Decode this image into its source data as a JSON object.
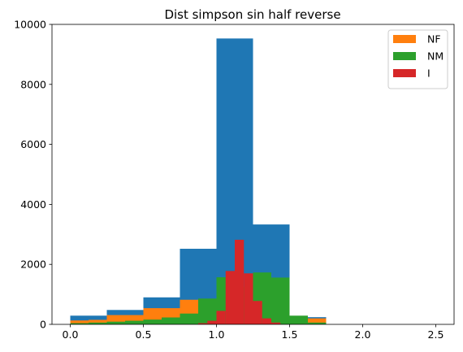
{
  "chart_data": {
    "type": "histogram",
    "title": "Dist simpson sin half reverse",
    "xlabel": "",
    "ylabel": "",
    "xlim": [
      -0.125,
      2.625
    ],
    "ylim": [
      0,
      10000
    ],
    "xticks": [
      0.0,
      0.5,
      1.0,
      1.5,
      2.0,
      2.5
    ],
    "xtick_labels": [
      "0.0",
      "0.5",
      "1.0",
      "1.5",
      "2.0",
      "2.5"
    ],
    "yticks": [
      0,
      2000,
      4000,
      6000,
      8000,
      10000
    ],
    "ytick_labels": [
      "0",
      "2000",
      "4000",
      "6000",
      "8000",
      "10000"
    ],
    "legend_position": "top-right",
    "series": [
      {
        "name": "",
        "color": "#1f77b4",
        "bins": [
          {
            "x0": 0.0,
            "x1": 0.25,
            "value": 290
          },
          {
            "x0": 0.25,
            "x1": 0.5,
            "value": 480
          },
          {
            "x0": 0.5,
            "x1": 0.75,
            "value": 900
          },
          {
            "x0": 0.75,
            "x1": 1.0,
            "value": 2520
          },
          {
            "x0": 1.0,
            "x1": 1.25,
            "value": 9530
          },
          {
            "x0": 1.25,
            "x1": 1.5,
            "value": 3330
          },
          {
            "x0": 1.5,
            "x1": 1.75,
            "value": 240
          }
        ]
      },
      {
        "name": "NF",
        "color": "#ff7f0e",
        "bins": [
          {
            "x0": 0.0,
            "x1": 0.125,
            "value": 130
          },
          {
            "x0": 0.125,
            "x1": 0.25,
            "value": 150
          },
          {
            "x0": 0.25,
            "x1": 0.5,
            "value": 310
          },
          {
            "x0": 0.5,
            "x1": 0.75,
            "value": 540
          },
          {
            "x0": 0.75,
            "x1": 1.0,
            "value": 820
          },
          {
            "x0": 1.0,
            "x1": 1.25,
            "value": 620
          },
          {
            "x0": 1.25,
            "x1": 1.375,
            "value": 640
          },
          {
            "x0": 1.375,
            "x1": 1.5,
            "value": 820
          },
          {
            "x0": 1.5,
            "x1": 1.75,
            "value": 200
          }
        ]
      },
      {
        "name": "NM",
        "color": "#2ca02c",
        "bins": [
          {
            "x0": 0.0,
            "x1": 0.125,
            "value": 40
          },
          {
            "x0": 0.125,
            "x1": 0.25,
            "value": 60
          },
          {
            "x0": 0.25,
            "x1": 0.375,
            "value": 90
          },
          {
            "x0": 0.375,
            "x1": 0.5,
            "value": 120
          },
          {
            "x0": 0.5,
            "x1": 0.625,
            "value": 160
          },
          {
            "x0": 0.625,
            "x1": 0.75,
            "value": 230
          },
          {
            "x0": 0.75,
            "x1": 0.875,
            "value": 360
          },
          {
            "x0": 0.875,
            "x1": 1.0,
            "value": 860
          },
          {
            "x0": 1.0,
            "x1": 1.125,
            "value": 1570
          },
          {
            "x0": 1.125,
            "x1": 1.25,
            "value": 1250
          },
          {
            "x0": 1.25,
            "x1": 1.375,
            "value": 1730
          },
          {
            "x0": 1.375,
            "x1": 1.5,
            "value": 1560
          },
          {
            "x0": 1.5,
            "x1": 1.625,
            "value": 290
          },
          {
            "x0": 1.625,
            "x1": 1.75,
            "value": 60
          }
        ]
      },
      {
        "name": "I",
        "color": "#d62728",
        "bins": [
          {
            "x0": 0.875,
            "x1": 0.9375,
            "value": 40
          },
          {
            "x0": 0.9375,
            "x1": 1.0,
            "value": 120
          },
          {
            "x0": 1.0,
            "x1": 1.0625,
            "value": 450
          },
          {
            "x0": 1.0625,
            "x1": 1.125,
            "value": 1780
          },
          {
            "x0": 1.125,
            "x1": 1.1875,
            "value": 2820
          },
          {
            "x0": 1.1875,
            "x1": 1.25,
            "value": 1700
          },
          {
            "x0": 1.25,
            "x1": 1.3125,
            "value": 780
          },
          {
            "x0": 1.3125,
            "x1": 1.375,
            "value": 200
          },
          {
            "x0": 1.375,
            "x1": 1.4375,
            "value": 60
          }
        ]
      }
    ]
  }
}
